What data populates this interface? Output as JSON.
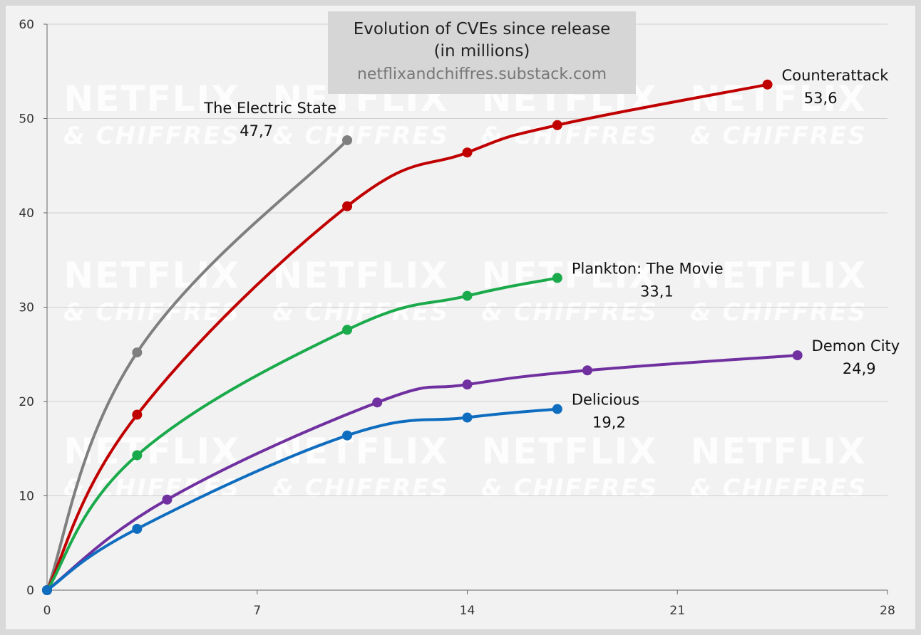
{
  "chart_data": {
    "type": "line",
    "title": "Evolution of CVEs since release",
    "subtitle": "(in millions)",
    "source": "netflixandchiffres.substack.com",
    "watermark": [
      "NETFLIX",
      "& CHIFFRES"
    ],
    "xlabel": "",
    "ylabel": "",
    "xlim": [
      0,
      28
    ],
    "ylim": [
      0,
      60
    ],
    "xticks": [
      0,
      7,
      14,
      21,
      28
    ],
    "yticks": [
      0,
      10,
      20,
      30,
      40,
      50,
      60
    ],
    "grid": "horizontal",
    "series": [
      {
        "name": "The Electric State",
        "label_value": "47,7",
        "color": "#7f7f7f",
        "points": [
          [
            0,
            0
          ],
          [
            3,
            25.2
          ],
          [
            10,
            47.7
          ]
        ]
      },
      {
        "name": "Counterattack",
        "label_value": "53,6",
        "color": "#c00000",
        "points": [
          [
            0,
            0
          ],
          [
            3,
            18.6
          ],
          [
            10,
            40.7
          ],
          [
            14,
            46.4
          ],
          [
            17,
            49.3
          ],
          [
            24,
            53.6
          ]
        ]
      },
      {
        "name": "Plankton: The Movie",
        "label_value": "33,1",
        "color": "#1aaa4b",
        "points": [
          [
            0,
            0
          ],
          [
            3,
            14.3
          ],
          [
            10,
            27.6
          ],
          [
            14,
            31.2
          ],
          [
            17,
            33.1
          ]
        ]
      },
      {
        "name": "Demon City",
        "label_value": "24,9",
        "color": "#7030a0",
        "points": [
          [
            0,
            0
          ],
          [
            4,
            9.6
          ],
          [
            11,
            19.9
          ],
          [
            14,
            21.8
          ],
          [
            18,
            23.3
          ],
          [
            25,
            24.9
          ]
        ]
      },
      {
        "name": "Delicious",
        "label_value": "19,2",
        "color": "#0f6dbf",
        "points": [
          [
            0,
            0
          ],
          [
            3,
            6.5
          ],
          [
            10,
            16.4
          ],
          [
            14,
            18.3
          ],
          [
            17,
            19.2
          ]
        ]
      }
    ]
  }
}
